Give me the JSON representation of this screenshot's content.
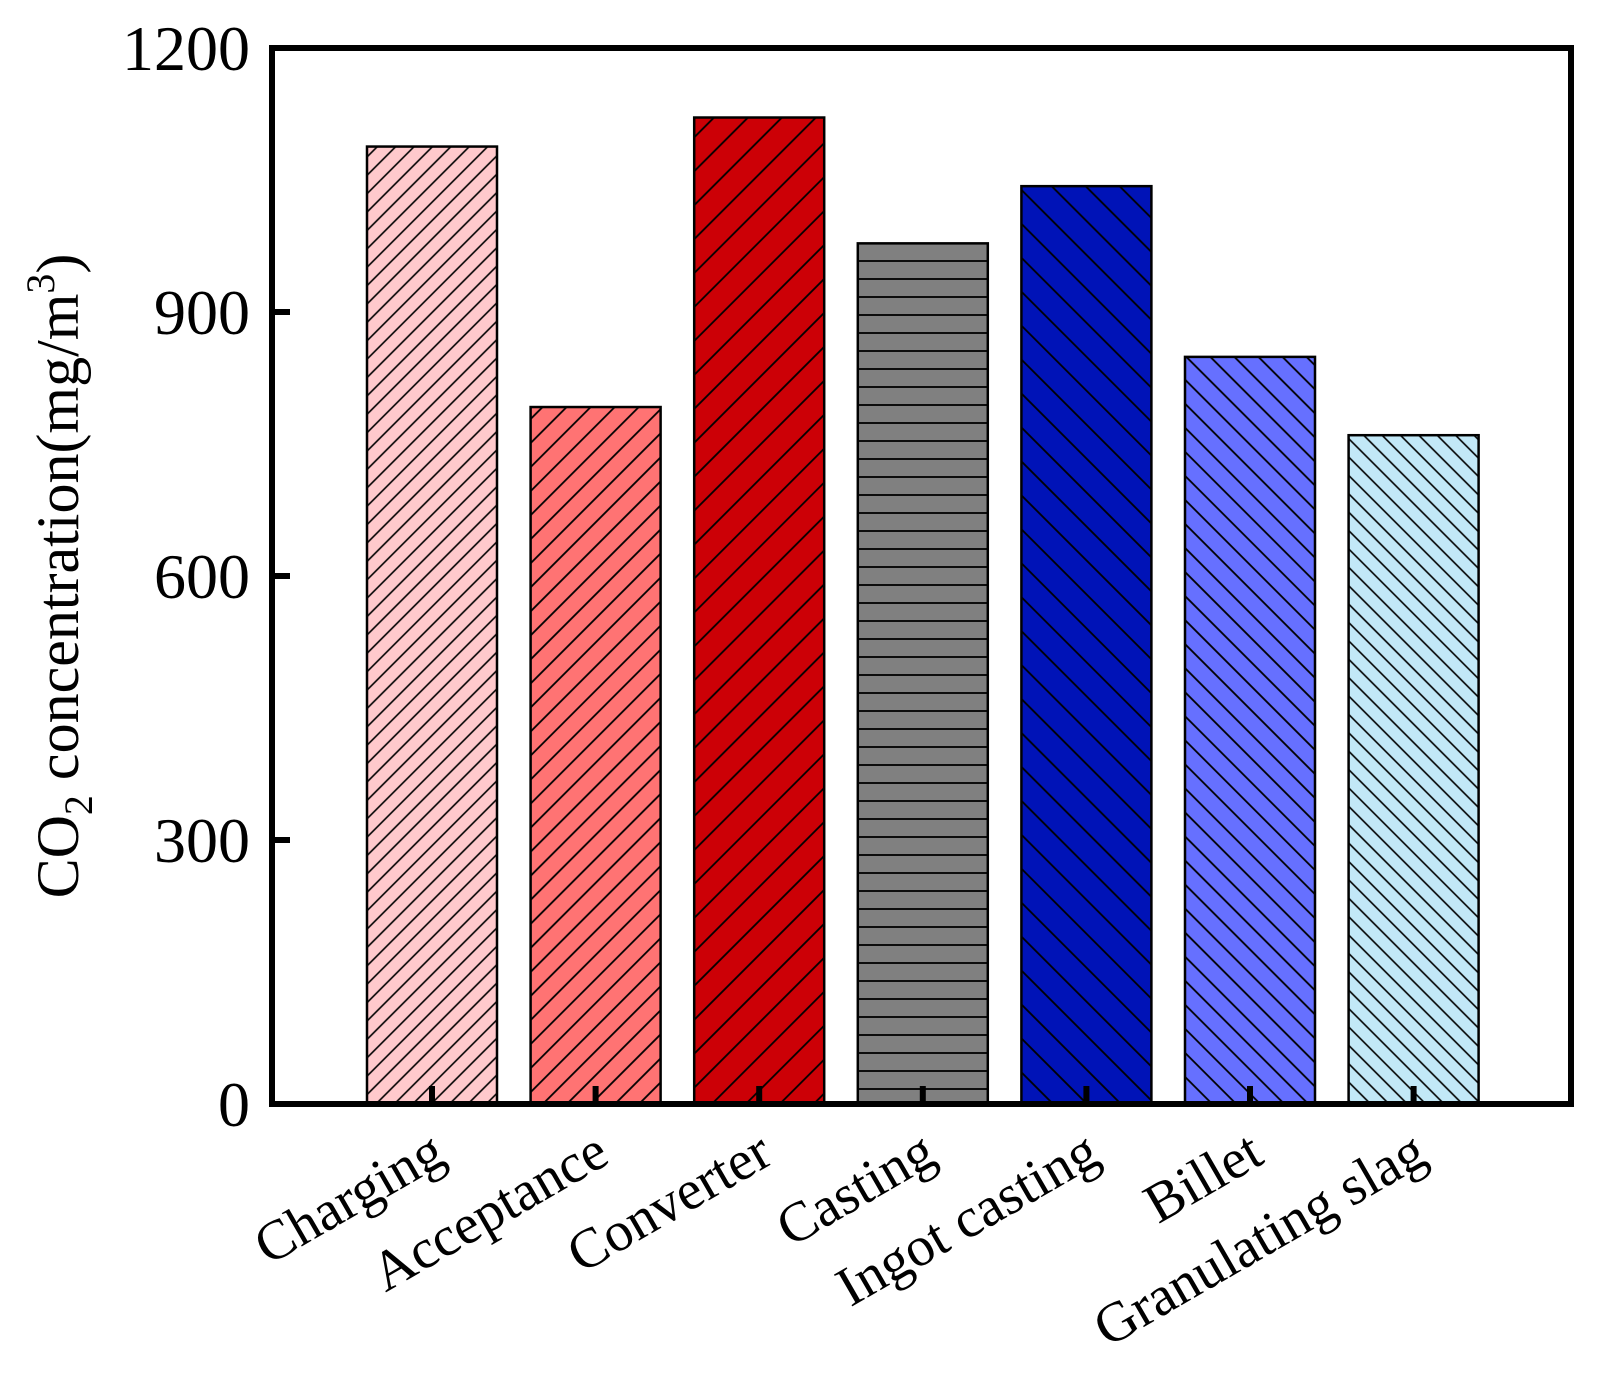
{
  "chart_data": {
    "type": "bar",
    "title": "",
    "xlabel": "",
    "ylabel": {
      "prefix": "CO",
      "subscript": "2",
      "middle": " concentration(mg/m",
      "superscript": "3",
      "suffix": ")"
    },
    "ylim": [
      0,
      1200
    ],
    "yticks": [
      0,
      300,
      600,
      900,
      1200
    ],
    "ytick_labels": [
      "0",
      "300",
      "600",
      "900",
      "1200"
    ],
    "grid": false,
    "legend": "none",
    "categories": [
      "Charging",
      "Acceptance",
      "Converter",
      "Casting",
      "Ingot casting",
      "Billet",
      "Granulating  slag"
    ],
    "values": [
      1088,
      792,
      1121,
      978,
      1043,
      849,
      760
    ],
    "bar_styles": [
      {
        "fill": "#FFC9CC",
        "hatch": "diag-up-fine"
      },
      {
        "fill": "#FF7373",
        "hatch": "diag-up"
      },
      {
        "fill": "#CC0006",
        "hatch": "diag-up-wide"
      },
      {
        "fill": "#808080",
        "hatch": "horizontal"
      },
      {
        "fill": "#0013B7",
        "hatch": "diag-down-wide"
      },
      {
        "fill": "#6670FF",
        "hatch": "diag-down"
      },
      {
        "fill": "#C2E8F7",
        "hatch": "diag-down-fine"
      }
    ]
  }
}
